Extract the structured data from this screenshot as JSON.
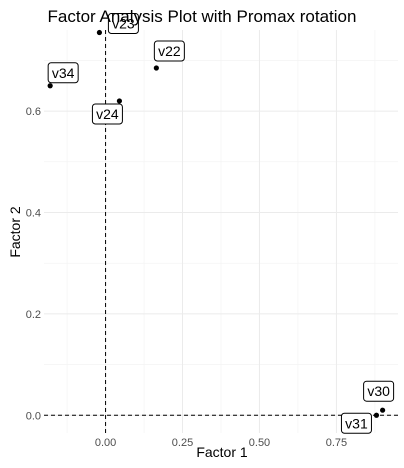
{
  "chart_data": {
    "type": "scatter",
    "title": "Factor Analysis Plot with Promax rotation",
    "xlabel": "Factor 1",
    "ylabel": "Factor 2",
    "xlim": [
      -0.2,
      0.95
    ],
    "ylim": [
      -0.035,
      0.76
    ],
    "x_ticks": [
      0.0,
      0.25,
      0.5,
      0.75
    ],
    "x_tick_labels": [
      "0.00",
      "0.25",
      "0.50",
      "0.75"
    ],
    "y_ticks": [
      0.0,
      0.2,
      0.4,
      0.6
    ],
    "y_tick_labels": [
      "0.0",
      "0.2",
      "0.4",
      "0.6"
    ],
    "grid": true,
    "reference_lines": {
      "x": 0,
      "y": 0
    },
    "points": [
      {
        "label": "v23",
        "x": -0.02,
        "y": 0.755
      },
      {
        "label": "v22",
        "x": 0.165,
        "y": 0.685
      },
      {
        "label": "v34",
        "x": -0.18,
        "y": 0.65
      },
      {
        "label": "v24",
        "x": 0.045,
        "y": 0.62
      },
      {
        "label": "v30",
        "x": 0.9,
        "y": 0.01
      },
      {
        "label": "v31",
        "x": 0.88,
        "y": 0.0
      }
    ]
  }
}
